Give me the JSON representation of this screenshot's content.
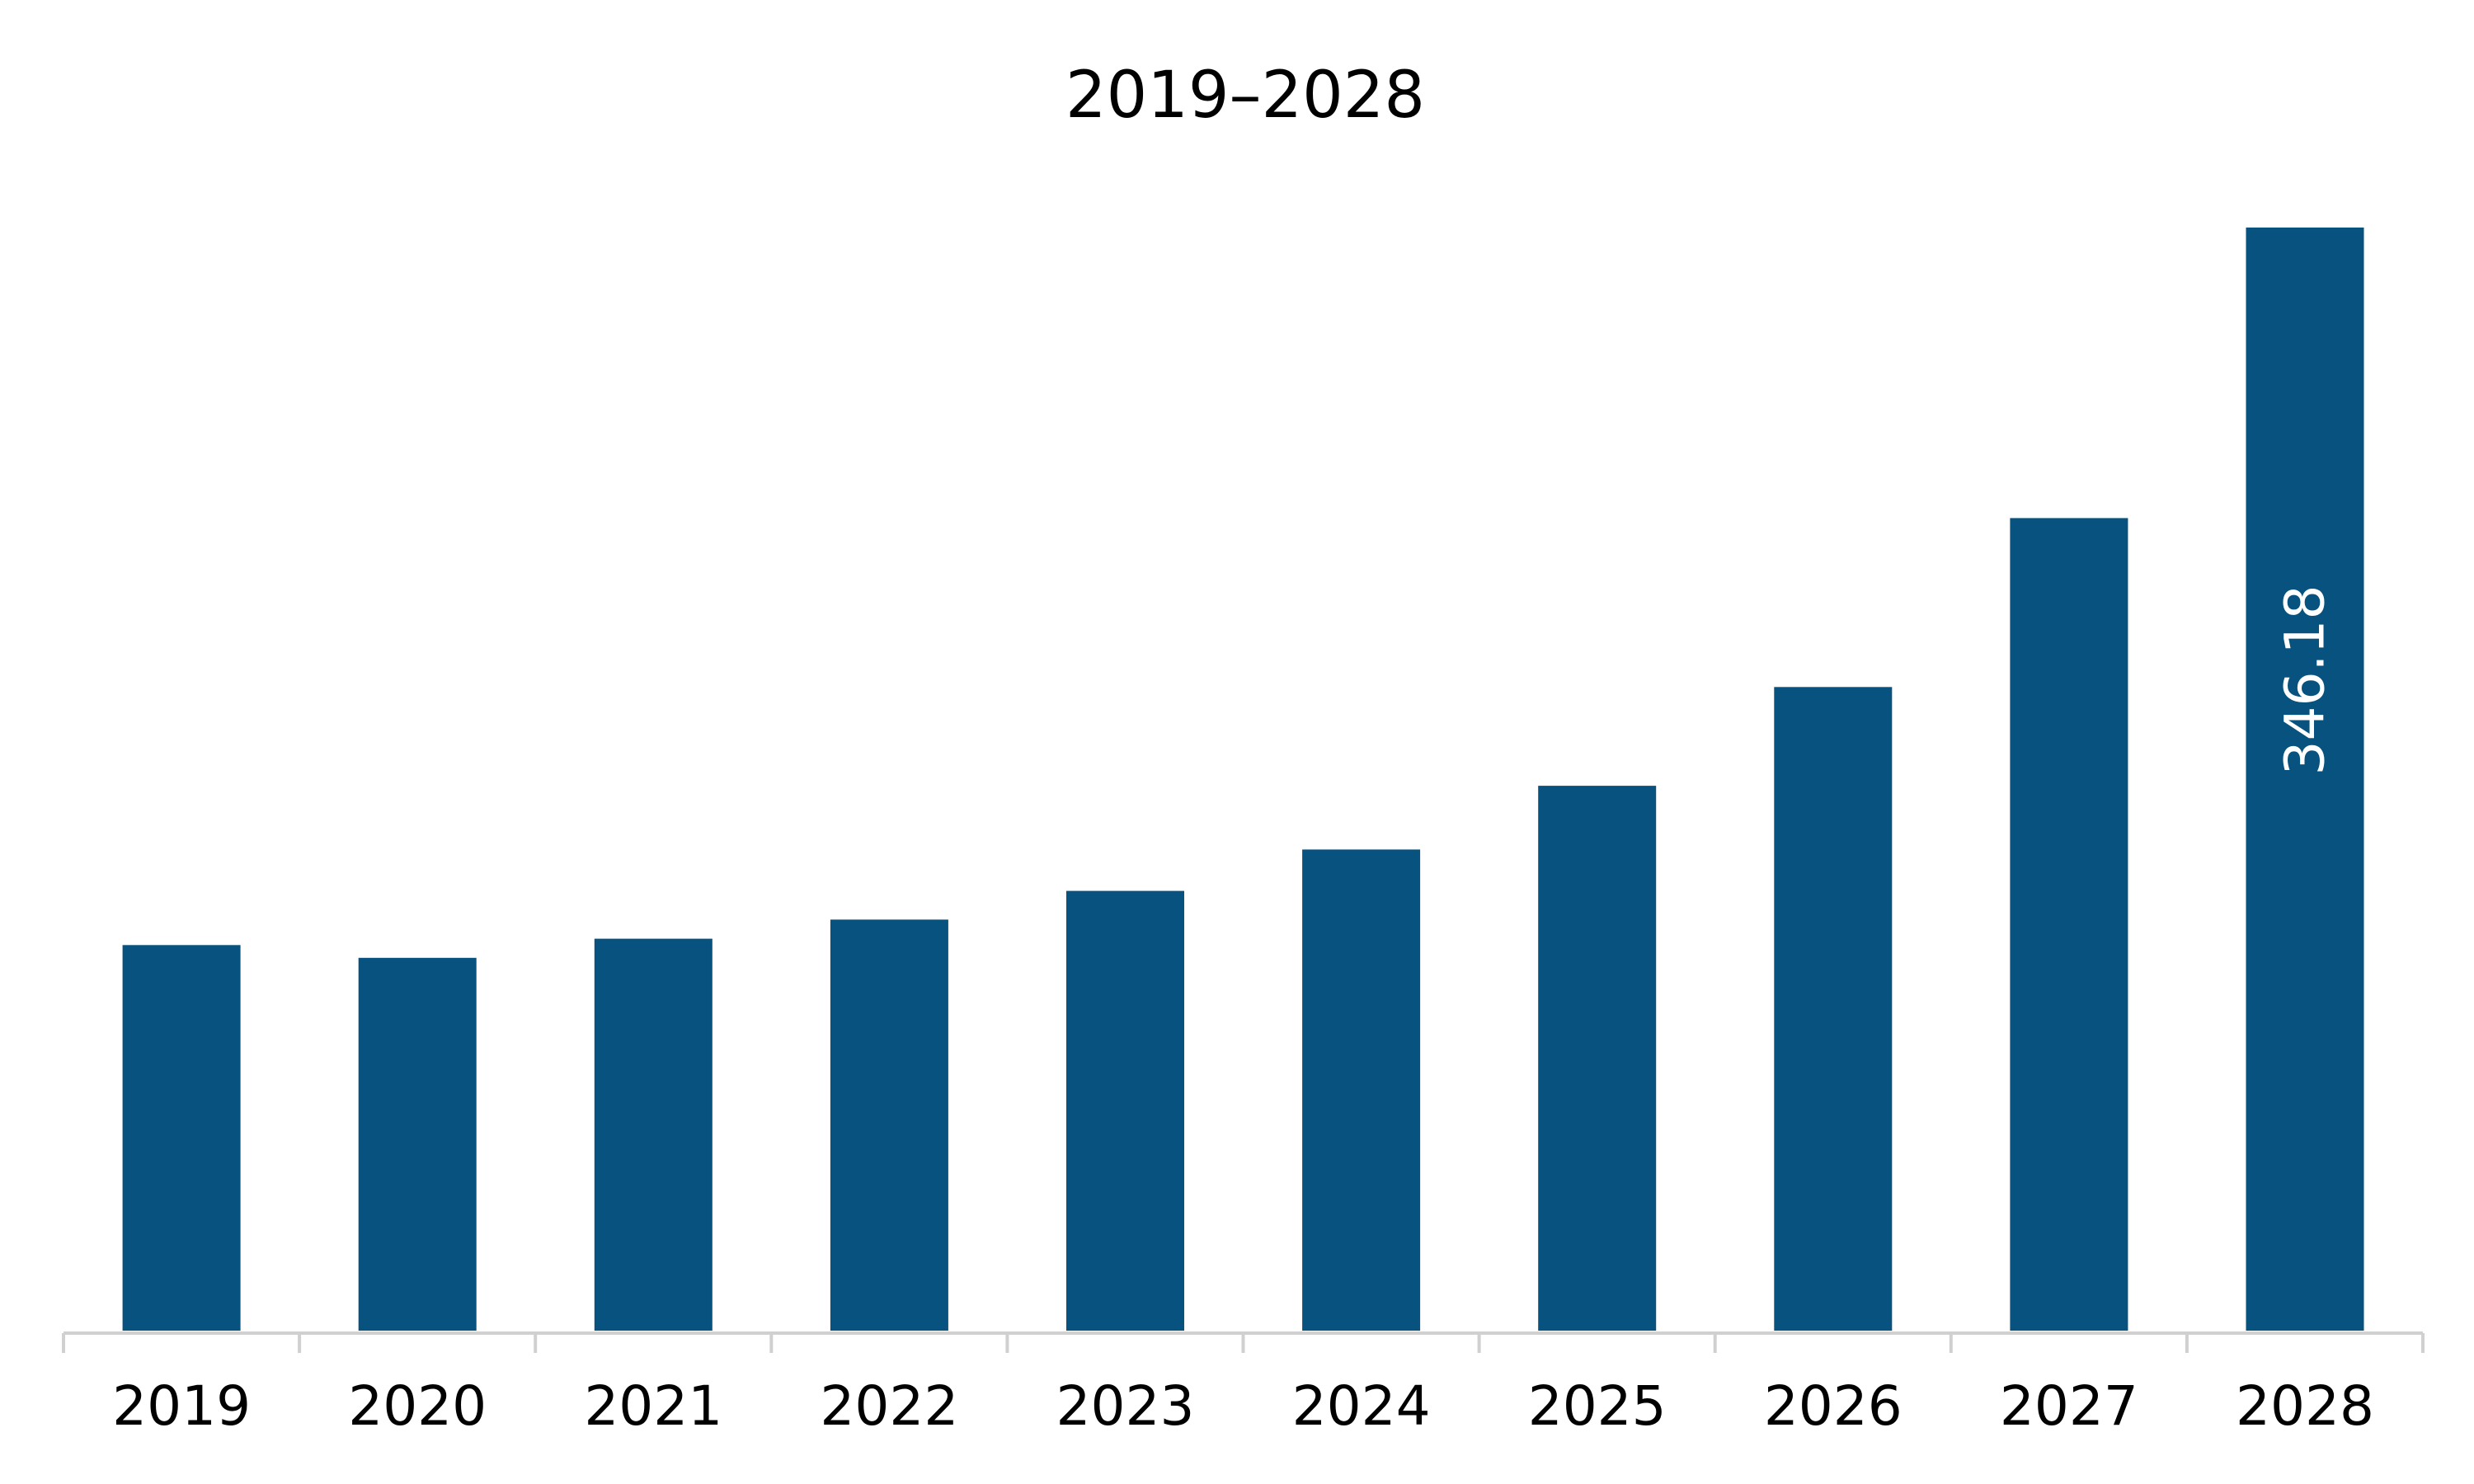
{
  "chart_data": {
    "type": "bar",
    "title": "2019–2028",
    "categories": [
      "2019",
      "2020",
      "2021",
      "2022",
      "2023",
      "2024",
      "2025",
      "2026",
      "2027",
      "2028"
    ],
    "values": [
      121,
      117,
      123,
      129,
      138,
      151,
      171,
      202,
      255,
      346.18
    ],
    "data_labels": [
      "",
      "",
      "",
      "",
      "",
      "",
      "",
      "",
      "",
      "346.18"
    ],
    "xlabel": "",
    "ylabel": "",
    "ylim": [
      0,
      346.18
    ],
    "grid": false,
    "legend": "none",
    "colors": {
      "bar": "#07527f",
      "axis": "#d0d0d0",
      "text": "#000000",
      "data_label": "#ffffff"
    }
  }
}
